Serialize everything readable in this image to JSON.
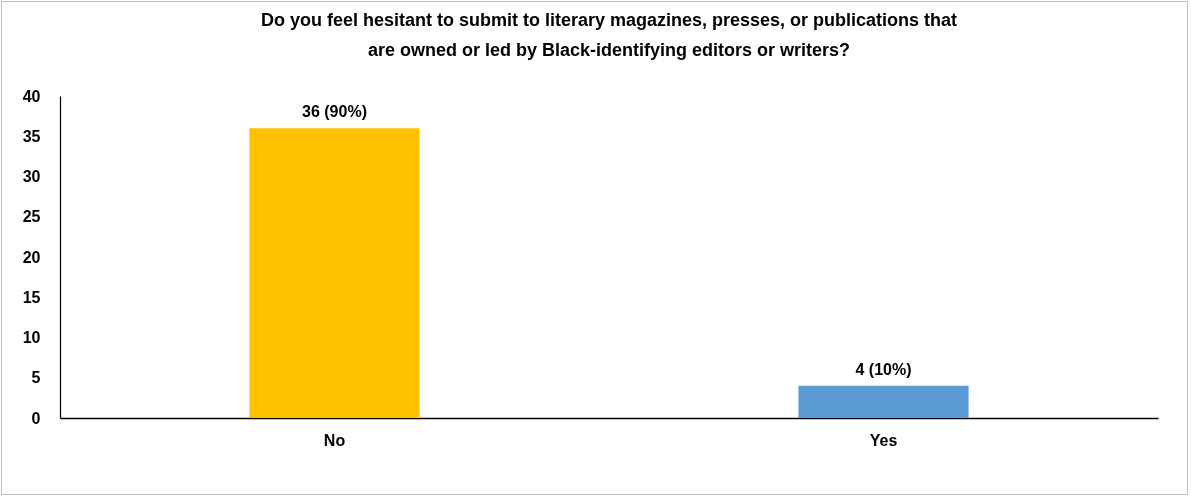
{
  "chart_data": {
    "type": "bar",
    "title": "Do you feel hesitant to submit to literary magazines, presses, or publications that are owned or led by Black-identifying editors or writers?",
    "categories": [
      "No",
      "Yes"
    ],
    "values": [
      36,
      4
    ],
    "colors": [
      "#ffc000",
      "#5b9bd5"
    ],
    "value_labels": [
      "36 (90%)",
      "4 (10%)"
    ],
    "ylim": [
      0,
      40
    ],
    "yticks": [
      0,
      5,
      10,
      15,
      20,
      25,
      30,
      35,
      40
    ],
    "grid": false,
    "legend": false
  }
}
